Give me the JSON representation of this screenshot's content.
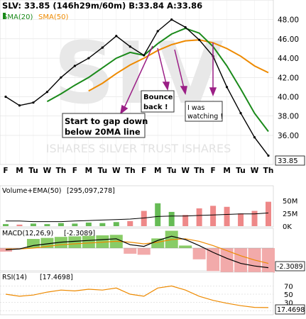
{
  "header": {
    "symbol_line": "SLV: 33.85 (146h29m/60m) B:33.84 A:33.86",
    "sma20_label": "SMA(20)",
    "sma50_label": "SMA(50)"
  },
  "watermark": {
    "ticker": "SLV",
    "name": "ISHARES SILVER TRUST ISHARES"
  },
  "colors": {
    "price": "#000000",
    "sma20": "#1a8a1a",
    "sma50": "#ee8a00",
    "annotation": "#9b1f86",
    "volume_up": "#66bb55",
    "volume_down": "#ee8888",
    "macd_line": "#000000",
    "macd_signal": "#ee8a00",
    "macd_hist_pos": "#88cc66",
    "macd_hist_neg": "#f2aaaa",
    "rsi_line": "#ee8a00",
    "last_bg": "#ffffff"
  },
  "annotations": {
    "gap_down_line1": "Start to gap down",
    "gap_down_line2": "below 20MA line",
    "bounce_line1": "Bounce",
    "bounce_line2": "back !",
    "watching_line1": "I was",
    "watching_line2": "watching !"
  },
  "chart_data": [
    {
      "type": "line",
      "title": "SLV",
      "x": [
        "F",
        "M",
        "Tu",
        "W",
        "Th",
        "F",
        "M",
        "Tu",
        "W",
        "Th",
        "F",
        "M",
        "Tu",
        "W",
        "Th",
        "F",
        "M",
        "Tu",
        "W",
        "Th"
      ],
      "ylim": [
        33.5,
        49
      ],
      "yticks": [
        36,
        38,
        40,
        42,
        44,
        46,
        48
      ],
      "last_value": "33.85",
      "series": [
        {
          "name": "SLV",
          "values": [
            40.0,
            39.1,
            39.4,
            40.5,
            42.0,
            43.2,
            44.0,
            45.1,
            46.3,
            45.2,
            44.3,
            46.8,
            48.0,
            47.2,
            45.9,
            44.2,
            41.0,
            38.3,
            35.8,
            33.9
          ]
        },
        {
          "name": "SMA(20)",
          "values": [
            null,
            null,
            null,
            39.5,
            40.3,
            41.2,
            42.0,
            43.0,
            44.0,
            44.6,
            44.3,
            45.5,
            46.5,
            47.1,
            46.6,
            45.2,
            43.2,
            40.8,
            38.3,
            36.4
          ]
        },
        {
          "name": "SMA(50)",
          "values": [
            null,
            null,
            null,
            null,
            null,
            null,
            40.6,
            41.4,
            42.4,
            43.3,
            44.0,
            44.8,
            45.4,
            45.8,
            45.9,
            45.6,
            45.0,
            44.2,
            43.2,
            42.5
          ]
        }
      ],
      "grid": true
    },
    {
      "type": "bar",
      "title": "Volume+EMA(50)",
      "label": "[295,097,278]",
      "yticks": [
        "50M",
        "25M",
        "0K"
      ],
      "ylim": [
        0,
        60
      ],
      "values": [
        4,
        3,
        5,
        4,
        6,
        5,
        7,
        6,
        8,
        10,
        30,
        45,
        28,
        22,
        35,
        40,
        38,
        25,
        30,
        48
      ],
      "ema": [
        10,
        10,
        9,
        9,
        9,
        10,
        11,
        12,
        13,
        14,
        16,
        19,
        20,
        20,
        21,
        22,
        23,
        24,
        24,
        26
      ]
    },
    {
      "type": "area",
      "title": "MACD(12,26,9)",
      "label": "[-2.3089]",
      "last_value": "-2.3089",
      "zero_line": true,
      "macd": [
        -0.2,
        -0.1,
        0.3,
        0.5,
        0.7,
        0.8,
        0.9,
        1.0,
        1.1,
        0.4,
        0.2,
        0.9,
        1.4,
        1.0,
        0.3,
        -0.5,
        -1.2,
        -1.8,
        -2.1,
        -2.3
      ],
      "signal": [
        -0.1,
        -0.1,
        0.0,
        0.2,
        0.4,
        0.5,
        0.6,
        0.7,
        0.8,
        0.7,
        0.5,
        0.7,
        1.0,
        1.1,
        0.8,
        0.3,
        -0.3,
        -0.9,
        -1.4,
        -1.8
      ]
    },
    {
      "type": "line",
      "title": "RSI(14)",
      "label": "[17.4698]",
      "last_value": "17.4698",
      "ylim": [
        0,
        100
      ],
      "yticks": [
        70,
        50,
        30,
        10
      ],
      "values": [
        50,
        45,
        48,
        55,
        60,
        58,
        62,
        60,
        65,
        50,
        45,
        65,
        70,
        60,
        45,
        35,
        28,
        22,
        18,
        17.5
      ]
    }
  ]
}
